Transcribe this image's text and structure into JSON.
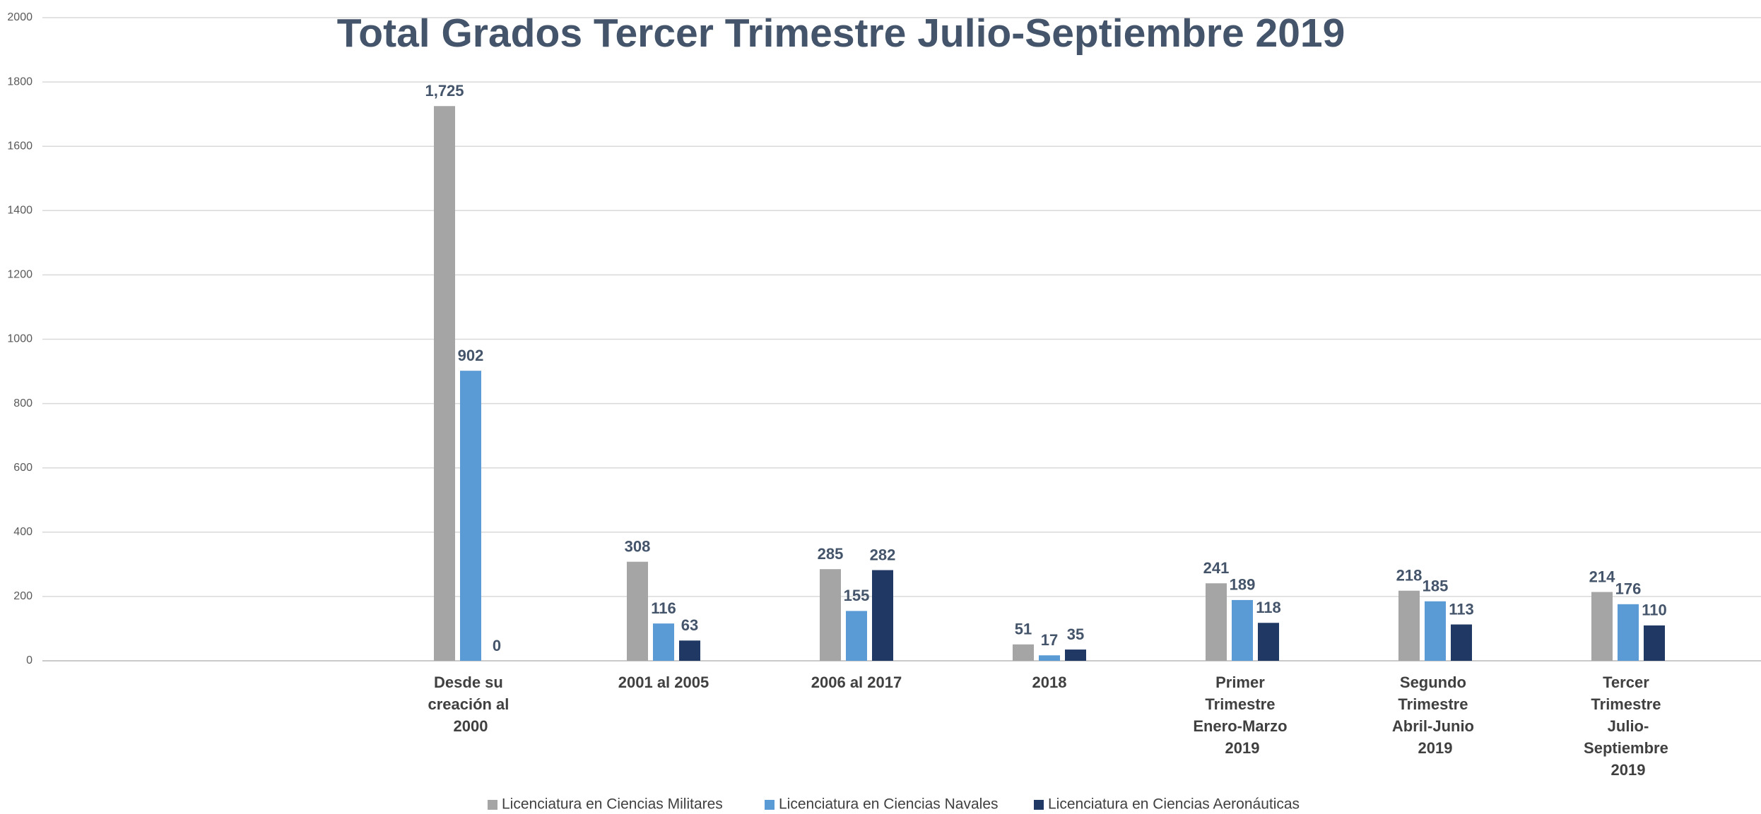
{
  "chart_data": {
    "type": "bar",
    "title": "Total Grados Tercer Trimestre Julio-Septiembre 2019",
    "categories": [
      "Desde su creación al 2000",
      "2001 al 2005",
      "2006 al 2017",
      "2018",
      "Primer Trimestre Enero-Marzo 2019",
      "Segundo Trimestre Abril-Junio 2019",
      "Tercer Trimestre Julio-Septiembre 2019"
    ],
    "series": [
      {
        "name": "Licenciatura en Ciencias Militares",
        "color": "#a5a5a5",
        "values": [
          1725,
          308,
          285,
          51,
          241,
          218,
          214
        ],
        "value_labels": [
          "1,725",
          "308",
          "285",
          "51",
          "241",
          "218",
          "214"
        ]
      },
      {
        "name": "Licenciatura en Ciencias Navales",
        "color": "#5b9bd5",
        "values": [
          902,
          116,
          155,
          17,
          189,
          185,
          176
        ]
      },
      {
        "name": "Licenciatura en Ciencias Aeronáuticas",
        "color": "#203864",
        "values": [
          0,
          63,
          282,
          35,
          118,
          113,
          110
        ]
      }
    ],
    "ylim": [
      0,
      2000
    ],
    "yticks": [
      0,
      200,
      400,
      600,
      800,
      1000,
      1200,
      1400,
      1600,
      1800,
      2000
    ],
    "grid": true,
    "legend": "bottom"
  }
}
